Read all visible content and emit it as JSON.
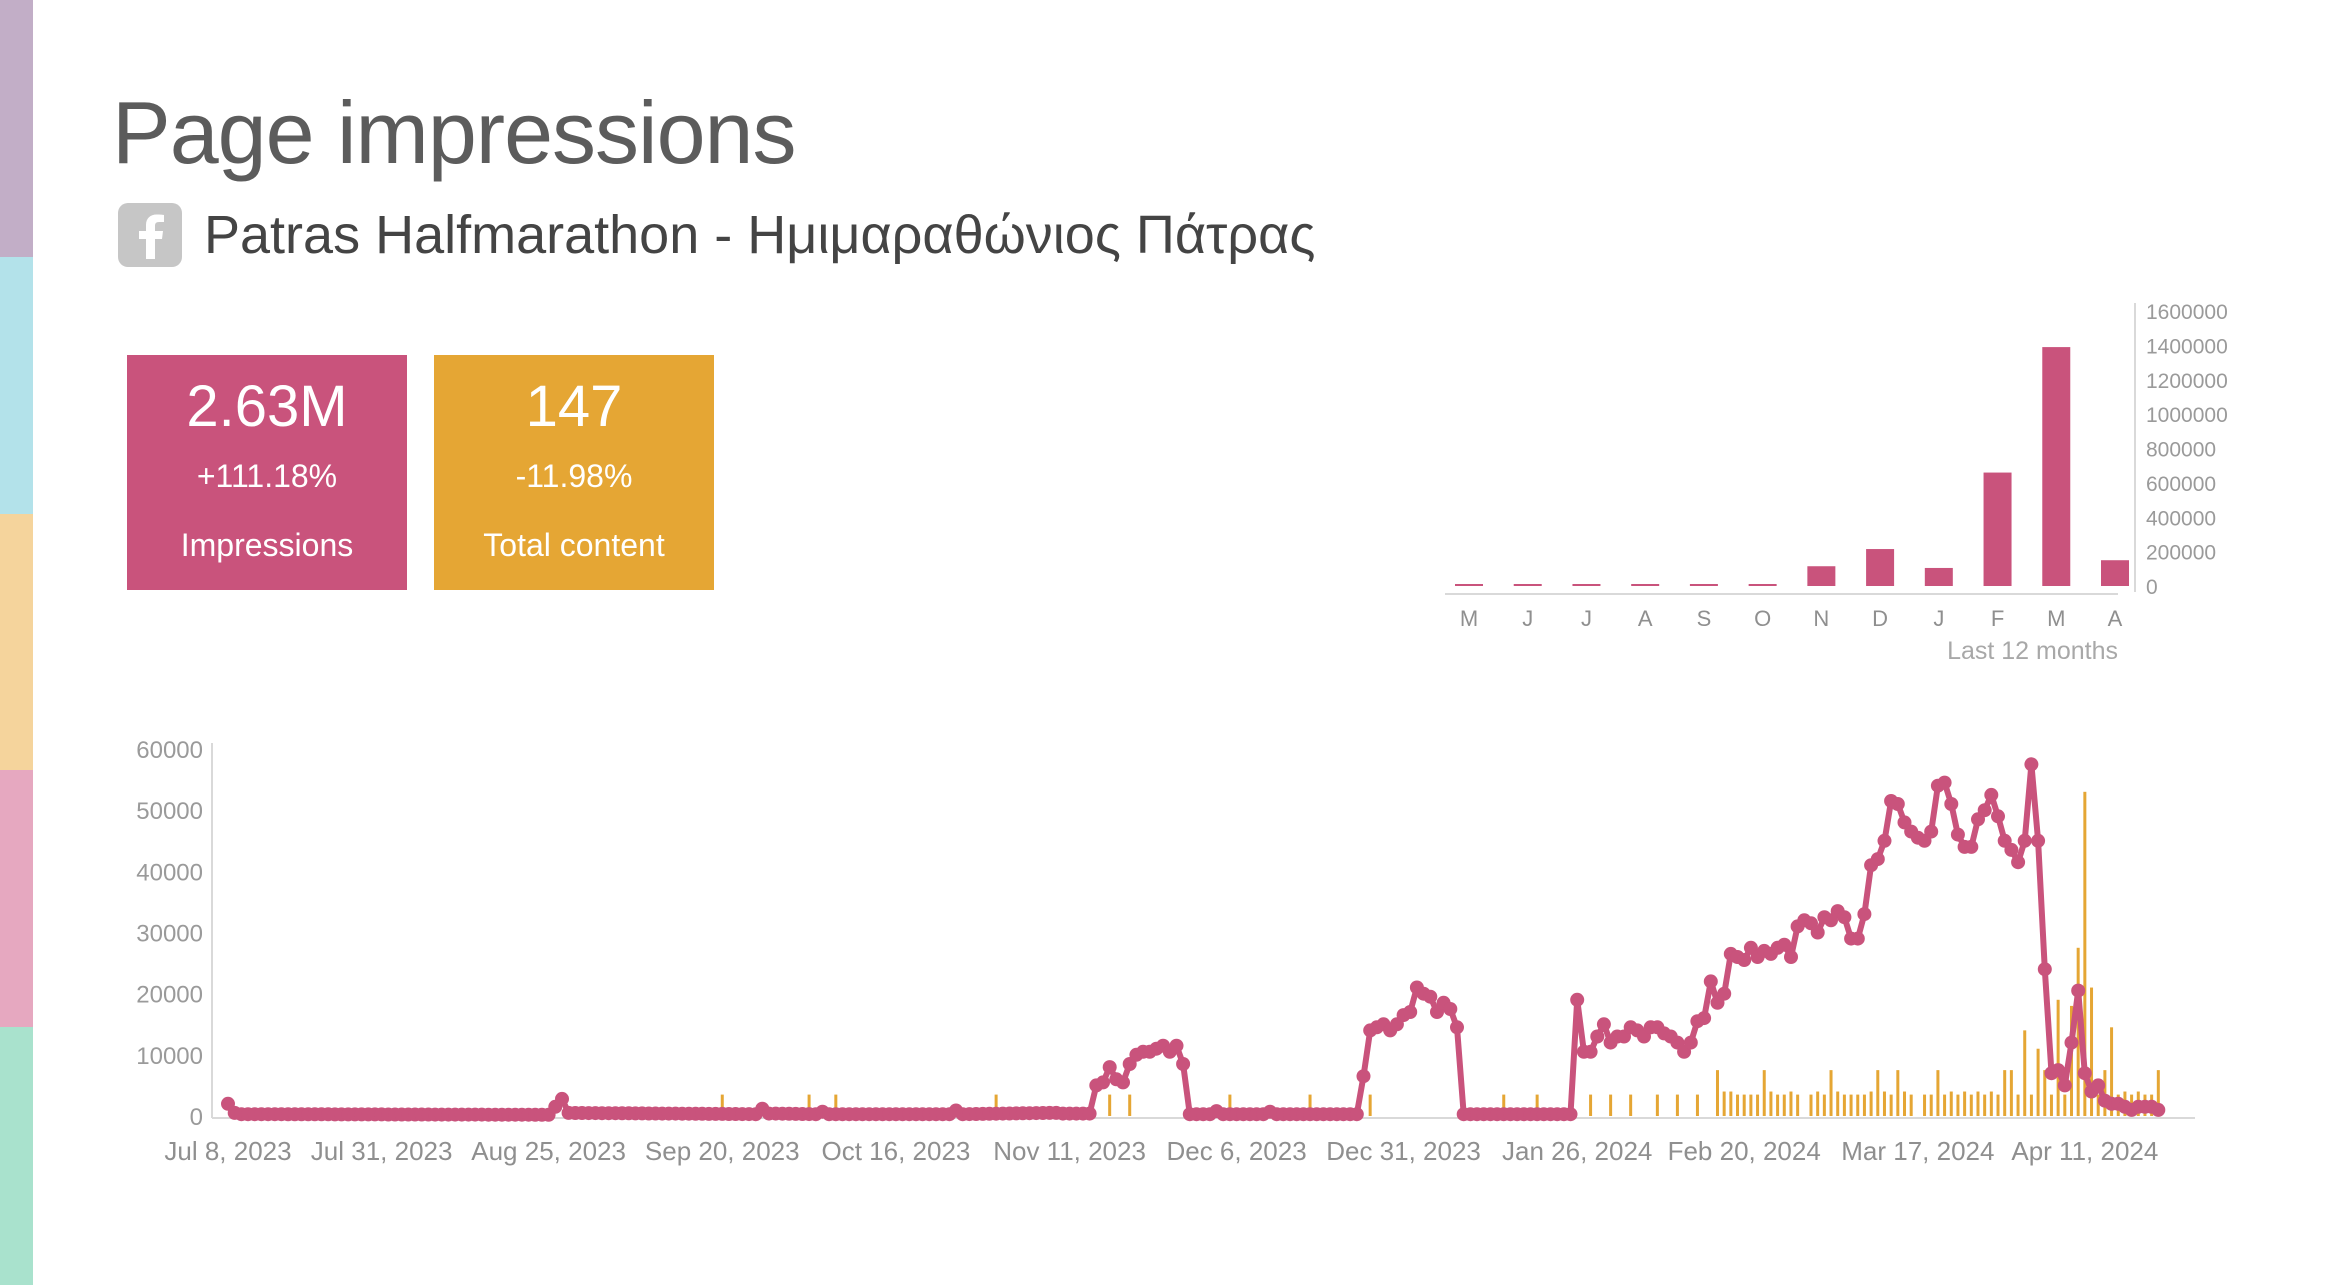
{
  "sidebar": {
    "bands": [
      "#c2aec7",
      "#b3e2ea",
      "#f5d49c",
      "#e6a8c0",
      "#a9e2cd"
    ]
  },
  "header": {
    "title": "Page impressions",
    "page_name": "Patras Halfmarathon - Ημιμαραθώνιος Πάτρας",
    "platform_icon": "facebook-icon"
  },
  "kpis": {
    "impressions": {
      "value": "2.63M",
      "change": "+111.18%",
      "label": "Impressions",
      "color": "#c9537c"
    },
    "content": {
      "value": "147",
      "change": "-11.98%",
      "label": "Total content",
      "color": "#e5a634"
    }
  },
  "chart_data": [
    {
      "type": "bar",
      "title": "",
      "xlabel": "Last 12 months",
      "categories": [
        "M",
        "J",
        "J",
        "A",
        "S",
        "O",
        "N",
        "D",
        "J",
        "F",
        "M",
        "A"
      ],
      "values": [
        1500,
        1500,
        1500,
        1500,
        1500,
        1500,
        115000,
        215000,
        105000,
        660000,
        1390000,
        150000
      ],
      "ylim": [
        0,
        1600000
      ],
      "yticks": [
        "0",
        "200000",
        "400000",
        "600000",
        "800000",
        "1000000",
        "1200000",
        "1400000",
        "1600000"
      ],
      "color": "#c9537c"
    },
    {
      "type": "line",
      "title": "",
      "x_start": "2023-07-08",
      "x_end": "2024-04-25",
      "xticks": [
        "Jul 8, 2023",
        "Jul 31, 2023",
        "Aug 25, 2023",
        "Sep 20, 2023",
        "Oct 16, 2023",
        "Nov 11, 2023",
        "Dec 6, 2023",
        "Dec 31, 2023",
        "Jan 26, 2024",
        "Feb 20, 2024",
        "Mar 17, 2024",
        "Apr 11, 2024"
      ],
      "yticks": [
        "0",
        "10000",
        "20000",
        "30000",
        "40000",
        "50000",
        "60000"
      ],
      "ylim": [
        0,
        60000
      ],
      "grid": false,
      "series": [
        {
          "kind": "line",
          "color": "#c9537c",
          "points": [
            [
              "2023-07-08",
              2000
            ],
            [
              "2023-07-09",
              500
            ],
            [
              "2023-07-10",
              300
            ],
            [
              "2023-08-25",
              200
            ],
            [
              "2023-08-27",
              2800
            ],
            [
              "2023-08-28",
              500
            ],
            [
              "2023-09-25",
              300
            ],
            [
              "2023-09-26",
              1200
            ],
            [
              "2023-09-27",
              400
            ],
            [
              "2023-10-04",
              300
            ],
            [
              "2023-10-05",
              700
            ],
            [
              "2023-10-06",
              300
            ],
            [
              "2023-10-24",
              300
            ],
            [
              "2023-10-25",
              900
            ],
            [
              "2023-10-26",
              300
            ],
            [
              "2023-11-08",
              500
            ],
            [
              "2023-11-09",
              500
            ],
            [
              "2023-11-10",
              400
            ],
            [
              "2023-11-14",
              400
            ],
            [
              "2023-11-15",
              5000
            ],
            [
              "2023-11-16",
              5500
            ],
            [
              "2023-11-17",
              8000
            ],
            [
              "2023-11-18",
              6000
            ],
            [
              "2023-11-19",
              5500
            ],
            [
              "2023-11-20",
              8500
            ],
            [
              "2023-11-21",
              10000
            ],
            [
              "2023-11-22",
              10500
            ],
            [
              "2023-11-23",
              10500
            ],
            [
              "2023-11-24",
              11000
            ],
            [
              "2023-11-25",
              11500
            ],
            [
              "2023-11-26",
              10500
            ],
            [
              "2023-11-27",
              11500
            ],
            [
              "2023-11-28",
              8500
            ],
            [
              "2023-11-29",
              300
            ],
            [
              "2023-11-30",
              300
            ],
            [
              "2023-12-01",
              300
            ],
            [
              "2023-12-02",
              300
            ],
            [
              "2023-12-03",
              800
            ],
            [
              "2023-12-04",
              300
            ],
            [
              "2023-12-10",
              300
            ],
            [
              "2023-12-11",
              700
            ],
            [
              "2023-12-12",
              300
            ],
            [
              "2023-12-24",
              300
            ],
            [
              "2023-12-25",
              6500
            ],
            [
              "2023-12-26",
              14000
            ],
            [
              "2023-12-27",
              14500
            ],
            [
              "2023-12-28",
              15000
            ],
            [
              "2023-12-29",
              14000
            ],
            [
              "2023-12-30",
              15000
            ],
            [
              "2023-12-31",
              16500
            ],
            [
              "2024-01-01",
              17000
            ],
            [
              "2024-01-02",
              21000
            ],
            [
              "2024-01-03",
              20000
            ],
            [
              "2024-01-04",
              19500
            ],
            [
              "2024-01-05",
              17000
            ],
            [
              "2024-01-06",
              18500
            ],
            [
              "2024-01-07",
              17500
            ],
            [
              "2024-01-08",
              14500
            ],
            [
              "2024-01-09",
              300
            ],
            [
              "2024-01-10",
              300
            ],
            [
              "2024-01-25",
              300
            ],
            [
              "2024-01-26",
              19000
            ],
            [
              "2024-01-27",
              10500
            ],
            [
              "2024-01-28",
              10500
            ],
            [
              "2024-01-29",
              13000
            ],
            [
              "2024-01-30",
              15000
            ],
            [
              "2024-01-31",
              12000
            ],
            [
              "2024-02-01",
              13000
            ],
            [
              "2024-02-02",
              13000
            ],
            [
              "2024-02-03",
              14500
            ],
            [
              "2024-02-04",
              14000
            ],
            [
              "2024-02-05",
              13000
            ],
            [
              "2024-02-06",
              14500
            ],
            [
              "2024-02-07",
              14500
            ],
            [
              "2024-02-08",
              13500
            ],
            [
              "2024-02-09",
              13000
            ],
            [
              "2024-02-10",
              12000
            ],
            [
              "2024-02-11",
              10500
            ],
            [
              "2024-02-12",
              12000
            ],
            [
              "2024-02-13",
              15500
            ],
            [
              "2024-02-14",
              16000
            ],
            [
              "2024-02-15",
              22000
            ],
            [
              "2024-02-16",
              18500
            ],
            [
              "2024-02-17",
              20000
            ],
            [
              "2024-02-18",
              26500
            ],
            [
              "2024-02-19",
              26000
            ],
            [
              "2024-02-20",
              25500
            ],
            [
              "2024-02-21",
              27500
            ],
            [
              "2024-02-22",
              26000
            ],
            [
              "2024-02-23",
              27000
            ],
            [
              "2024-02-24",
              26500
            ],
            [
              "2024-02-25",
              27500
            ],
            [
              "2024-02-26",
              28000
            ],
            [
              "2024-02-27",
              26000
            ],
            [
              "2024-02-28",
              31000
            ],
            [
              "2024-02-29",
              32000
            ],
            [
              "2024-03-01",
              31500
            ],
            [
              "2024-03-02",
              30000
            ],
            [
              "2024-03-03",
              32500
            ],
            [
              "2024-03-04",
              32000
            ],
            [
              "2024-03-05",
              33500
            ],
            [
              "2024-03-06",
              32500
            ],
            [
              "2024-03-07",
              29000
            ],
            [
              "2024-03-08",
              29000
            ],
            [
              "2024-03-09",
              33000
            ],
            [
              "2024-03-10",
              41000
            ],
            [
              "2024-03-11",
              42000
            ],
            [
              "2024-03-12",
              45000
            ],
            [
              "2024-03-13",
              51500
            ],
            [
              "2024-03-14",
              51000
            ],
            [
              "2024-03-15",
              48000
            ],
            [
              "2024-03-16",
              46500
            ],
            [
              "2024-03-17",
              45500
            ],
            [
              "2024-03-18",
              45000
            ],
            [
              "2024-03-19",
              46500
            ],
            [
              "2024-03-20",
              54000
            ],
            [
              "2024-03-21",
              54500
            ],
            [
              "2024-03-22",
              51000
            ],
            [
              "2024-03-23",
              46000
            ],
            [
              "2024-03-24",
              44000
            ],
            [
              "2024-03-25",
              44000
            ],
            [
              "2024-03-26",
              48500
            ],
            [
              "2024-03-27",
              50000
            ],
            [
              "2024-03-28",
              52500
            ],
            [
              "2024-03-29",
              49000
            ],
            [
              "2024-03-30",
              45000
            ],
            [
              "2024-03-31",
              43500
            ],
            [
              "2024-04-01",
              41500
            ],
            [
              "2024-04-02",
              45000
            ],
            [
              "2024-04-03",
              57500
            ],
            [
              "2024-04-04",
              45000
            ],
            [
              "2024-04-05",
              24000
            ],
            [
              "2024-04-06",
              7000
            ],
            [
              "2024-04-07",
              7500
            ],
            [
              "2024-04-08",
              5000
            ],
            [
              "2024-04-09",
              12000
            ],
            [
              "2024-04-10",
              20500
            ],
            [
              "2024-04-11",
              7000
            ],
            [
              "2024-04-12",
              4000
            ],
            [
              "2024-04-13",
              5000
            ],
            [
              "2024-04-14",
              2500
            ],
            [
              "2024-04-15",
              2000
            ],
            [
              "2024-04-16",
              2000
            ],
            [
              "2024-04-17",
              1500
            ],
            [
              "2024-04-18",
              1000
            ],
            [
              "2024-04-19",
              1500
            ],
            [
              "2024-04-20",
              1500
            ],
            [
              "2024-04-21",
              1500
            ],
            [
              "2024-04-22",
              1000
            ]
          ]
        },
        {
          "kind": "bars",
          "color": "#e5a634",
          "points": [
            [
              "2023-09-20",
              3500
            ],
            [
              "2023-10-03",
              3500
            ],
            [
              "2023-10-07",
              3500
            ],
            [
              "2023-10-31",
              3500
            ],
            [
              "2023-11-17",
              3500
            ],
            [
              "2023-11-20",
              3500
            ],
            [
              "2023-12-05",
              3500
            ],
            [
              "2023-12-17",
              3500
            ],
            [
              "2023-12-26",
              3500
            ],
            [
              "2024-01-15",
              3500
            ],
            [
              "2024-01-20",
              3500
            ],
            [
              "2024-01-25",
              3500
            ],
            [
              "2024-02-19",
              3500
            ],
            [
              "2024-02-22",
              3500
            ],
            [
              "2024-02-25",
              3500
            ],
            [
              "2024-02-28",
              3500
            ],
            [
              "2024-03-01",
              3500
            ],
            [
              "2024-03-03",
              3500
            ],
            [
              "2024-03-06",
              3500
            ],
            [
              "2024-03-09",
              3500
            ],
            [
              "2024-03-13",
              3500
            ],
            [
              "2024-03-16",
              3500
            ],
            [
              "2024-03-18",
              3500
            ],
            [
              "2024-03-21",
              3500
            ],
            [
              "2024-03-23",
              3500
            ],
            [
              "2024-03-25",
              3500
            ],
            [
              "2024-03-27",
              3500
            ],
            [
              "2024-03-29",
              3500
            ],
            [
              "2024-04-01",
              3500
            ],
            [
              "2024-04-03",
              3500
            ],
            [
              "2024-04-06",
              3500
            ],
            [
              "2024-04-08",
              3500
            ],
            [
              "2024-04-13",
              3500
            ],
            [
              "2024-04-16",
              3500
            ],
            [
              "2024-04-18",
              3500
            ],
            [
              "2024-04-21",
              3500
            ],
            [
              "2024-01-28",
              3500
            ],
            [
              "2024-01-31",
              3500
            ],
            [
              "2024-02-03",
              3500
            ],
            [
              "2024-02-07",
              3500
            ],
            [
              "2024-02-10",
              3500
            ],
            [
              "2024-02-13",
              3500
            ],
            [
              "2024-02-16",
              7500
            ],
            [
              "2024-02-17",
              4000
            ],
            [
              "2024-02-18",
              4000
            ],
            [
              "2024-02-20",
              3500
            ],
            [
              "2024-02-21",
              3500
            ],
            [
              "2024-02-23",
              7500
            ],
            [
              "2024-02-24",
              4000
            ],
            [
              "2024-02-26",
              3500
            ],
            [
              "2024-02-27",
              4000
            ],
            [
              "2024-03-02",
              4000
            ],
            [
              "2024-03-04",
              7500
            ],
            [
              "2024-03-05",
              4000
            ],
            [
              "2024-03-07",
              3500
            ],
            [
              "2024-03-08",
              3500
            ],
            [
              "2024-03-10",
              4000
            ],
            [
              "2024-03-11",
              7500
            ],
            [
              "2024-03-12",
              4000
            ],
            [
              "2024-03-14",
              7500
            ],
            [
              "2024-03-15",
              4000
            ],
            [
              "2024-03-19",
              3500
            ],
            [
              "2024-03-20",
              7500
            ],
            [
              "2024-03-22",
              4000
            ],
            [
              "2024-03-24",
              4000
            ],
            [
              "2024-03-26",
              4000
            ],
            [
              "2024-03-28",
              4000
            ],
            [
              "2024-03-30",
              7500
            ],
            [
              "2024-03-31",
              7500
            ],
            [
              "2024-04-02",
              14000
            ],
            [
              "2024-04-04",
              11000
            ],
            [
              "2024-04-05",
              7500
            ],
            [
              "2024-04-07",
              19000
            ],
            [
              "2024-04-09",
              18000
            ],
            [
              "2024-04-10",
              27500
            ],
            [
              "2024-04-11",
              53000
            ],
            [
              "2024-04-12",
              21000
            ],
            [
              "2024-04-14",
              7500
            ],
            [
              "2024-04-15",
              14500
            ],
            [
              "2024-04-17",
              4000
            ],
            [
              "2024-04-19",
              4000
            ],
            [
              "2024-04-20",
              3500
            ],
            [
              "2024-04-22",
              7500
            ]
          ]
        }
      ]
    }
  ]
}
